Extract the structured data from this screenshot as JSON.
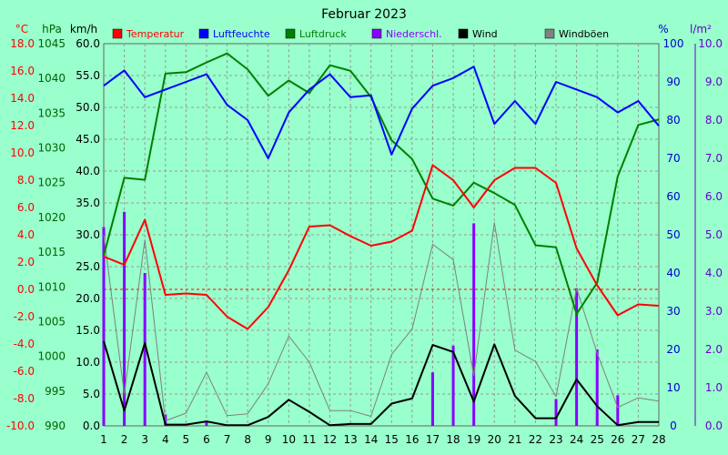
{
  "chart_data": {
    "type": "line",
    "title": "Februar 2023",
    "x": [
      1,
      2,
      3,
      4,
      5,
      6,
      7,
      8,
      9,
      10,
      11,
      12,
      13,
      14,
      15,
      16,
      17,
      18,
      19,
      20,
      21,
      22,
      23,
      24,
      25,
      26,
      27,
      28
    ],
    "axes": {
      "temp": {
        "unit": "°C",
        "min": -10,
        "max": 18,
        "step": 2,
        "color": "#ff0000"
      },
      "press": {
        "unit": "hPa",
        "min": 990,
        "max": 1045,
        "step": 5,
        "color": "#006400"
      },
      "wind": {
        "unit": "km/h",
        "min": 0,
        "max": 60,
        "step": 5,
        "color": "#000000"
      },
      "hum": {
        "unit": "%",
        "min": 0,
        "max": 100,
        "step": 10,
        "color": "#0000cc"
      },
      "rain": {
        "unit": "l/m²",
        "min": 0,
        "max": 10,
        "step": 1,
        "color": "#6600cc"
      }
    },
    "series": [
      {
        "name": "Temperatur",
        "axis": "temp",
        "color": "#ff0000",
        "kind": "line",
        "values": [
          2.4,
          1.8,
          5.1,
          -0.4,
          -0.3,
          -0.4,
          -2.0,
          -2.9,
          -1.3,
          1.4,
          4.6,
          4.7,
          3.9,
          3.2,
          3.5,
          4.3,
          9.1,
          8.0,
          6.0,
          8.0,
          8.9,
          8.9,
          7.8,
          3.0,
          0.3,
          -1.9,
          -1.1,
          -1.2
        ]
      },
      {
        "name": "Luftfeuchte",
        "axis": "hum",
        "color": "#0000ff",
        "kind": "line",
        "values": [
          89,
          93,
          86,
          88,
          90,
          92,
          84,
          80,
          70,
          82,
          88,
          92,
          86,
          86.5,
          71,
          83,
          89,
          91,
          94,
          79,
          85,
          79,
          90,
          88,
          86,
          82,
          85,
          78.5
        ]
      },
      {
        "name": "Luftdruck",
        "axis": "press",
        "color": "#008000",
        "kind": "line",
        "values": [
          1014.5,
          1025.7,
          1025.4,
          1040.7,
          1040.9,
          1042.3,
          1043.6,
          1041.3,
          1037.5,
          1039.7,
          1037.9,
          1041.9,
          1041.1,
          1037.3,
          1031.1,
          1028.4,
          1022.7,
          1021.7,
          1025.0,
          1023.5,
          1021.8,
          1016.0,
          1015.7,
          1006.1,
          1010.6,
          1025.9,
          1033.3,
          1034.1
        ]
      },
      {
        "name": "Niederschl.",
        "axis": "rain",
        "color": "#8800ff",
        "kind": "bar",
        "values": [
          5.2,
          5.6,
          4.0,
          0.3,
          0,
          0.1,
          0,
          0,
          0,
          0,
          0,
          0,
          0,
          0,
          0,
          0,
          1.4,
          2.1,
          5.3,
          0,
          0,
          0,
          0.7,
          3.6,
          2.0,
          0.8,
          0,
          0
        ]
      },
      {
        "name": "Wind",
        "axis": "wind",
        "color": "#000000",
        "kind": "line",
        "values": [
          13.3,
          2.4,
          13.0,
          0.2,
          0.2,
          0.7,
          0.1,
          0.1,
          1.4,
          4.1,
          2.2,
          0.1,
          0.3,
          0.3,
          3.5,
          4.3,
          12.7,
          11.6,
          3.8,
          12.8,
          4.7,
          1.2,
          1.2,
          7.3,
          3.1,
          0.1,
          0.6,
          0.6
        ]
      },
      {
        "name": "Windböen",
        "axis": "wind",
        "color": "#808080",
        "kind": "line",
        "values": [
          30.0,
          5.0,
          29.2,
          0.8,
          2.0,
          8.4,
          1.6,
          1.9,
          6.6,
          14.1,
          10.0,
          2.4,
          2.4,
          1.5,
          11.2,
          15.2,
          28.5,
          26.1,
          7.9,
          31.9,
          11.9,
          10.1,
          4.6,
          21.6,
          11.4,
          2.9,
          4.4,
          3.9
        ]
      }
    ],
    "legend_position": "top",
    "grid": true,
    "grid_style": "dashed",
    "zero_line_color": "#ff0000"
  }
}
